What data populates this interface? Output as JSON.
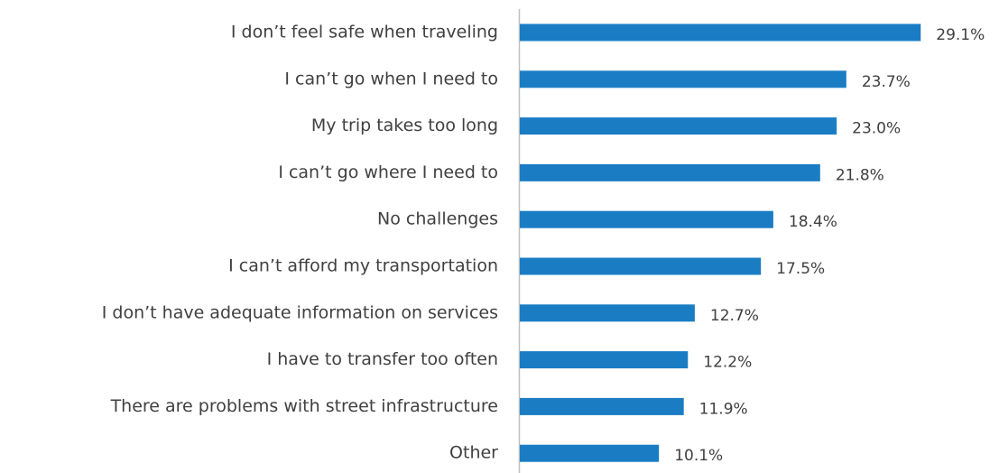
{
  "chart_data": {
    "type": "barh",
    "categories": [
      "I don’t feel safe when traveling",
      "I can’t go when I need to",
      "My trip takes too long",
      "I can’t go where I need to",
      "No challenges",
      "I can’t afford my transportation",
      "I don’t have adequate information on services",
      "I have to transfer too often",
      "There are problems with street infrastructure",
      "Other"
    ],
    "values": [
      29.1,
      23.7,
      23.0,
      21.8,
      18.4,
      17.5,
      12.7,
      12.2,
      11.9,
      10.1
    ],
    "value_labels": [
      "29.1%",
      "23.7%",
      "23.0%",
      "21.8%",
      "18.4%",
      "17.5%",
      "12.7%",
      "12.2%",
      "11.9%",
      "10.1%"
    ],
    "color": "#1a7dc4",
    "xlim": [
      0,
      30
    ]
  }
}
